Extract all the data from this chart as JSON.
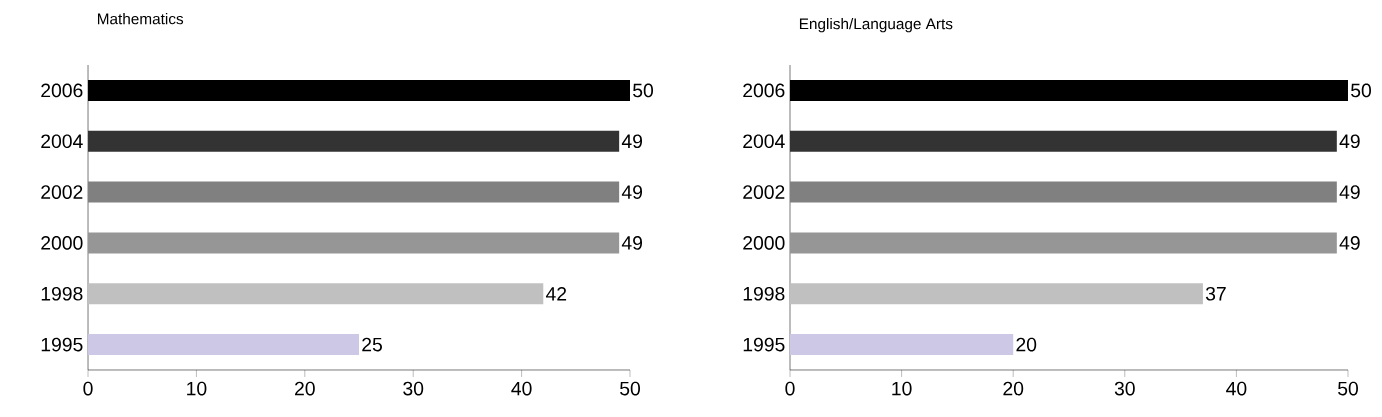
{
  "chart_data": [
    {
      "type": "bar",
      "orientation": "horizontal",
      "title": "Mathematics",
      "categories": [
        "2006",
        "2004",
        "2002",
        "2000",
        "1998",
        "1995"
      ],
      "values": [
        50,
        49,
        49,
        49,
        42,
        25
      ],
      "colors": [
        "#000000",
        "#333333",
        "#808080",
        "#969696",
        "#c0c0c0",
        "#ccc8e6"
      ],
      "xlim": [
        0,
        50
      ],
      "xticks": [
        0,
        10,
        20,
        30,
        40,
        50
      ],
      "data_labels": true
    },
    {
      "type": "bar",
      "orientation": "horizontal",
      "title": "English/Language Arts",
      "categories": [
        "2006",
        "2004",
        "2002",
        "2000",
        "1998",
        "1995"
      ],
      "values": [
        50,
        49,
        49,
        49,
        37,
        20
      ],
      "colors": [
        "#000000",
        "#333333",
        "#808080",
        "#969696",
        "#c0c0c0",
        "#ccc8e6"
      ],
      "xlim": [
        0,
        50
      ],
      "xticks": [
        0,
        10,
        20,
        30,
        40,
        50
      ],
      "data_labels": true
    }
  ]
}
